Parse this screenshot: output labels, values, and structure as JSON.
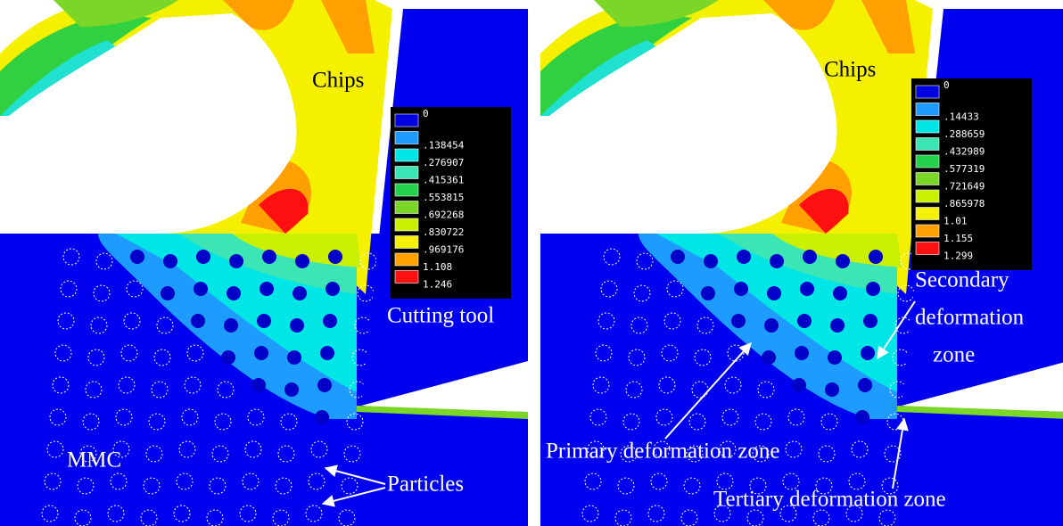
{
  "panels": [
    {
      "labels": {
        "chips": "Chips",
        "tool": "Cutting tool",
        "mmc": "MMC",
        "particles": "Particles"
      },
      "legend": [
        "0",
        ".138454",
        ".276907",
        ".415361",
        ".553815",
        ".692268",
        ".830722",
        ".969176",
        "1.108",
        "1.246"
      ]
    },
    {
      "labels": {
        "chips": "Chips",
        "secondary": [
          "Secondary",
          "deformation",
          "zone"
        ],
        "primary": "Primary deformation zone",
        "tertiary": "Tertiary deformation zone"
      },
      "legend": [
        "0",
        ".14433",
        ".288659",
        ".432989",
        ".577319",
        ".721649",
        ".865978",
        "1.01",
        "1.155",
        "1.299"
      ]
    }
  ]
}
